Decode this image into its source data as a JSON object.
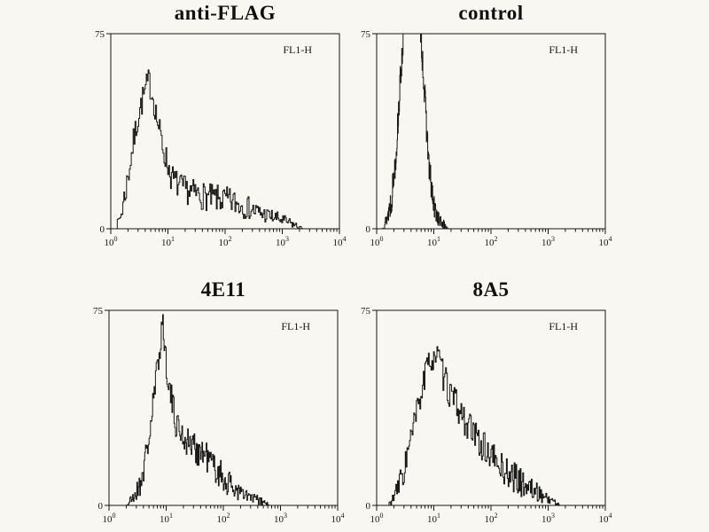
{
  "figure": {
    "background": "#f8f7f2",
    "line_color": "#1a1a1a",
    "axis_color": "#161616"
  },
  "chart_data": [
    {
      "id": "anti-flag",
      "type": "histogram",
      "title": "anti-FLAG",
      "annotation": "FL1-H",
      "x_scale": "log",
      "x_tick_base": "10",
      "x_ticks": [
        0,
        1,
        2,
        3,
        4
      ],
      "xlim_log10": [
        0,
        4
      ],
      "ylim": [
        0,
        75
      ],
      "y_ticks": [
        0,
        75
      ],
      "seed": 7,
      "noise": 4.5,
      "envelope": [
        [
          0.08,
          0
        ],
        [
          0.18,
          6
        ],
        [
          0.28,
          18
        ],
        [
          0.38,
          32
        ],
        [
          0.48,
          44
        ],
        [
          0.58,
          52
        ],
        [
          0.66,
          57
        ],
        [
          0.74,
          50
        ],
        [
          0.82,
          40
        ],
        [
          0.92,
          30
        ],
        [
          1.05,
          20
        ],
        [
          1.2,
          16
        ],
        [
          1.4,
          14
        ],
        [
          1.7,
          12
        ],
        [
          2.0,
          11
        ],
        [
          2.3,
          9
        ],
        [
          2.6,
          6
        ],
        [
          2.9,
          4
        ],
        [
          3.15,
          2
        ],
        [
          3.35,
          0
        ]
      ]
    },
    {
      "id": "control",
      "type": "histogram",
      "title": "control",
      "annotation": "FL1-H",
      "x_scale": "log",
      "x_tick_base": "10",
      "x_ticks": [
        0,
        1,
        2,
        3,
        4
      ],
      "xlim_log10": [
        0,
        4
      ],
      "ylim": [
        0,
        75
      ],
      "y_ticks": [
        0,
        75
      ],
      "seed": 13,
      "noise": 5,
      "envelope": [
        [
          0.1,
          0
        ],
        [
          0.18,
          4
        ],
        [
          0.26,
          12
        ],
        [
          0.34,
          30
        ],
        [
          0.42,
          60
        ],
        [
          0.5,
          85
        ],
        [
          0.58,
          95
        ],
        [
          0.68,
          95
        ],
        [
          0.76,
          80
        ],
        [
          0.84,
          50
        ],
        [
          0.92,
          22
        ],
        [
          1.0,
          8
        ],
        [
          1.1,
          3
        ],
        [
          1.25,
          0
        ]
      ]
    },
    {
      "id": "4e11",
      "type": "histogram",
      "title": "4E11",
      "annotation": "FL1-H",
      "x_scale": "log",
      "x_tick_base": "10",
      "x_ticks": [
        0,
        1,
        2,
        3,
        4
      ],
      "xlim_log10": [
        0,
        4
      ],
      "ylim": [
        0,
        75
      ],
      "y_ticks": [
        0,
        75
      ],
      "seed": 21,
      "noise": 5,
      "envelope": [
        [
          0.3,
          0
        ],
        [
          0.42,
          3
        ],
        [
          0.52,
          7
        ],
        [
          0.62,
          16
        ],
        [
          0.72,
          30
        ],
        [
          0.8,
          45
        ],
        [
          0.88,
          60
        ],
        [
          0.93,
          72
        ],
        [
          0.98,
          58
        ],
        [
          1.06,
          44
        ],
        [
          1.15,
          33
        ],
        [
          1.3,
          26
        ],
        [
          1.5,
          22
        ],
        [
          1.7,
          19
        ],
        [
          1.9,
          13
        ],
        [
          2.1,
          8
        ],
        [
          2.35,
          4
        ],
        [
          2.6,
          2
        ],
        [
          2.8,
          0
        ]
      ]
    },
    {
      "id": "8a5",
      "type": "histogram",
      "title": "8A5",
      "annotation": "FL1-H",
      "x_scale": "log",
      "x_tick_base": "10",
      "x_ticks": [
        0,
        1,
        2,
        3,
        4
      ],
      "xlim_log10": [
        0,
        4
      ],
      "ylim": [
        0,
        75
      ],
      "y_ticks": [
        0,
        75
      ],
      "seed": 33,
      "noise": 5,
      "envelope": [
        [
          0.2,
          0
        ],
        [
          0.32,
          4
        ],
        [
          0.45,
          12
        ],
        [
          0.58,
          24
        ],
        [
          0.7,
          36
        ],
        [
          0.82,
          48
        ],
        [
          0.95,
          57
        ],
        [
          1.05,
          58
        ],
        [
          1.15,
          50
        ],
        [
          1.3,
          42
        ],
        [
          1.5,
          34
        ],
        [
          1.7,
          27
        ],
        [
          1.95,
          20
        ],
        [
          2.2,
          14
        ],
        [
          2.5,
          9
        ],
        [
          2.8,
          5
        ],
        [
          3.05,
          2
        ],
        [
          3.2,
          0
        ]
      ]
    }
  ]
}
